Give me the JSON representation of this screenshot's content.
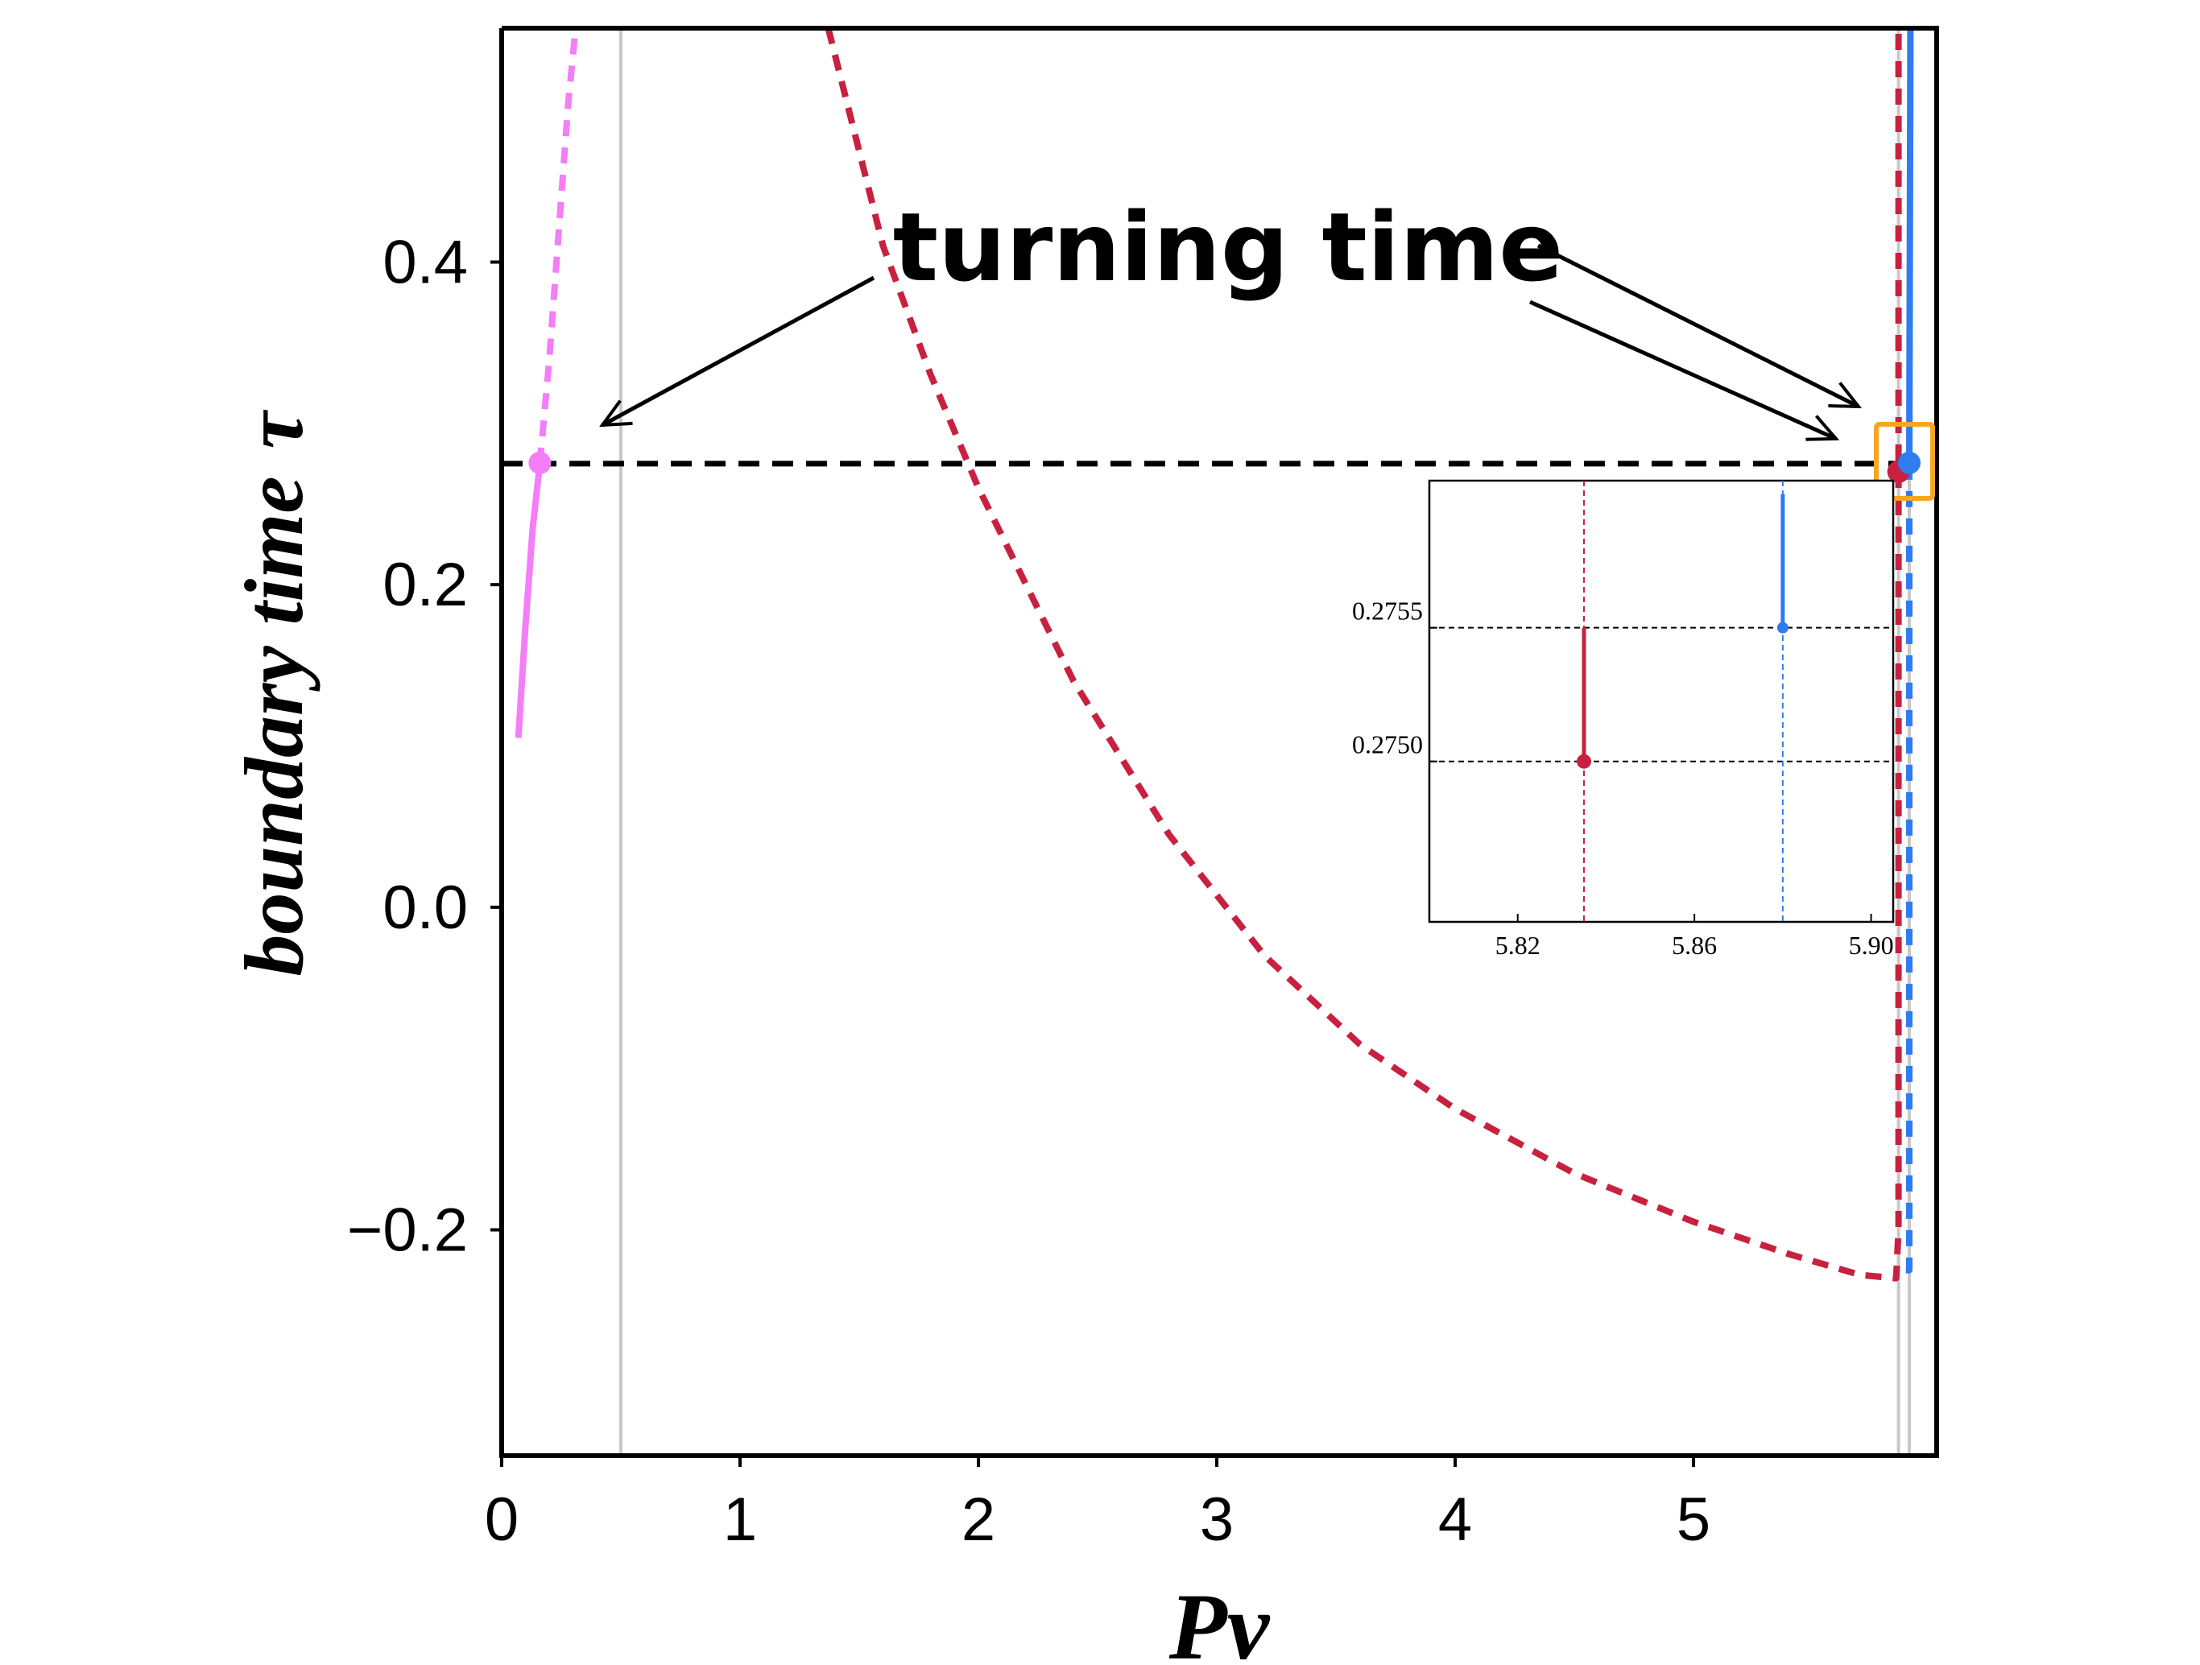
{
  "chart_data": [
    {
      "type": "line",
      "title": "",
      "xlabel": "Pv",
      "ylabel": "boundary time",
      "ylabel_symbol": "τ",
      "xlim": [
        0,
        6.02
      ],
      "ylim": [
        -0.34,
        0.545
      ],
      "xticks": [
        0,
        1,
        2,
        3,
        4,
        5
      ],
      "xtick_labels": [
        "0",
        "1",
        "2",
        "3",
        "4",
        "5"
      ],
      "yticks": [
        -0.2,
        0.0,
        0.2,
        0.4
      ],
      "ytick_labels": [
        "−0.2",
        "0.0",
        "0.2",
        "0.4"
      ],
      "reference_lines": {
        "turning_time_tau": 0.275,
        "vertical_x": [
          0.5,
          5.86,
          5.905
        ]
      },
      "series": [
        {
          "name": "pink-solid",
          "color": "#f47ef7",
          "style": "solid",
          "x": [
            0.07,
            0.1,
            0.13,
            0.16
          ],
          "y": [
            0.105,
            0.175,
            0.235,
            0.275
          ]
        },
        {
          "name": "pink-dashed",
          "color": "#f47ef7",
          "style": "dashed",
          "x": [
            0.16,
            0.2,
            0.24,
            0.28,
            0.31
          ],
          "y": [
            0.275,
            0.34,
            0.42,
            0.5,
            0.545
          ]
        },
        {
          "name": "red-dashed",
          "color": "#c8213f",
          "style": "dashed",
          "x": [
            1.37,
            1.6,
            1.8,
            2.0,
            2.4,
            2.8,
            3.2,
            3.6,
            4.0,
            4.5,
            5.0,
            5.4,
            5.7,
            5.85,
            5.86,
            5.86
          ],
          "y": [
            0.545,
            0.41,
            0.33,
            0.26,
            0.14,
            0.045,
            -0.03,
            -0.085,
            -0.125,
            -0.165,
            -0.195,
            -0.215,
            -0.228,
            -0.23,
            -0.2,
            0.545
          ]
        },
        {
          "name": "blue-dashed",
          "color": "#2f7cf0",
          "style": "dashed",
          "x": [
            5.905,
            5.905,
            5.89
          ],
          "y": [
            0.275,
            -0.225,
            -0.225
          ]
        },
        {
          "name": "blue-solid",
          "color": "#2f7cf0",
          "style": "solid",
          "x": [
            5.905,
            5.91
          ],
          "y": [
            0.275,
            0.545
          ]
        }
      ],
      "points": [
        {
          "name": "pink-turning-point",
          "x": 0.16,
          "y": 0.2755,
          "color": "#f47ef7"
        },
        {
          "name": "red-turning-point",
          "x": 5.86,
          "y": 0.27,
          "color": "#c8213f"
        },
        {
          "name": "blue-turning-point",
          "x": 5.905,
          "y": 0.2755,
          "color": "#2f7cf0"
        }
      ],
      "annotation": {
        "text": "turning time",
        "arrows_point_to": [
          "pink turning point",
          "red/blue turning points near Pv ≈ 5.88"
        ]
      }
    },
    {
      "type": "line",
      "name": "inset-zoom",
      "xlim": [
        5.8,
        5.905
      ],
      "ylim": [
        0.2744,
        0.27605
      ],
      "xticks": [
        5.82,
        5.86,
        5.9
      ],
      "xtick_labels": [
        "5.82",
        "5.86",
        "5.90"
      ],
      "yticks": [
        0.275,
        0.2755
      ],
      "ytick_labels": [
        "0.2750",
        "0.2755"
      ],
      "hlines": [
        0.275,
        0.2755
      ],
      "series": [
        {
          "name": "red-vline",
          "color": "#c8213f",
          "x": 5.835,
          "solid_y": [
            0.275,
            0.2755
          ],
          "dashed": true
        },
        {
          "name": "blue-vline",
          "color": "#2f7cf0",
          "x": 5.88,
          "solid_y": [
            0.2755,
            0.276
          ],
          "dashed": true
        }
      ],
      "points": [
        {
          "name": "inset-red-point",
          "x": 5.835,
          "y": 0.275,
          "color": "#c8213f"
        },
        {
          "name": "inset-blue-point",
          "x": 5.88,
          "y": 0.2755,
          "color": "#2f7cf0"
        }
      ]
    }
  ],
  "colors": {
    "pink": "#f47ef7",
    "red": "#c8213f",
    "blue": "#2f7cf0",
    "orange": "#f5a623",
    "grey": "#c8c8c8"
  }
}
